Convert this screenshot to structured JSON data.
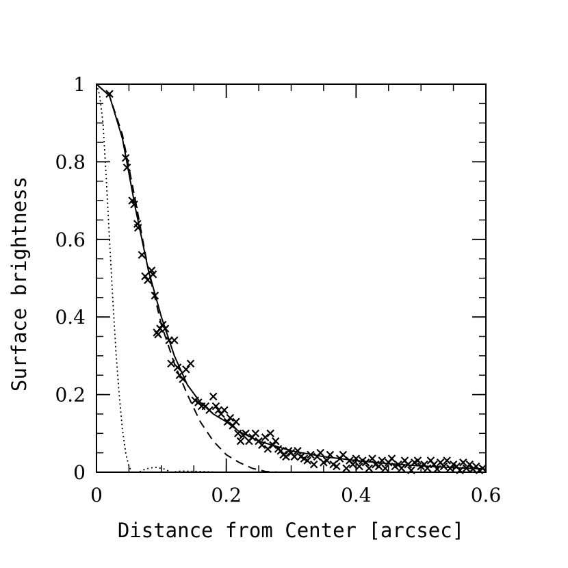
{
  "chart_data": {
    "type": "scatter",
    "xlabel": "Distance from Center [arcsec]",
    "ylabel": "Surface brightness",
    "xlim": [
      0,
      0.6
    ],
    "ylim": [
      0,
      1
    ],
    "x_ticks": [
      {
        "value": 0,
        "label": "0"
      },
      {
        "value": 0.2,
        "label": "0.2"
      },
      {
        "value": 0.4,
        "label": "0.4"
      },
      {
        "value": 0.6,
        "label": "0.6"
      }
    ],
    "y_ticks": [
      {
        "value": 0,
        "label": "0"
      },
      {
        "value": 0.2,
        "label": "0.2"
      },
      {
        "value": 0.4,
        "label": "0.4"
      },
      {
        "value": 0.6,
        "label": "0.6"
      },
      {
        "value": 0.8,
        "label": "0.8"
      },
      {
        "value": 1,
        "label": "1"
      }
    ],
    "x_minor_step": 0.05,
    "y_minor_step": 0.05,
    "grid": false,
    "legend": "none",
    "series": [
      {
        "style": "crosses",
        "points": [
          [
            0.02,
            0.975
          ],
          [
            0.045,
            0.81
          ],
          [
            0.047,
            0.785
          ],
          [
            0.055,
            0.7
          ],
          [
            0.058,
            0.69
          ],
          [
            0.063,
            0.64
          ],
          [
            0.064,
            0.63
          ],
          [
            0.07,
            0.56
          ],
          [
            0.075,
            0.505
          ],
          [
            0.079,
            0.495
          ],
          [
            0.085,
            0.52
          ],
          [
            0.087,
            0.51
          ],
          [
            0.09,
            0.455
          ],
          [
            0.093,
            0.36
          ],
          [
            0.095,
            0.355
          ],
          [
            0.098,
            0.37
          ],
          [
            0.102,
            0.38
          ],
          [
            0.106,
            0.37
          ],
          [
            0.112,
            0.34
          ],
          [
            0.115,
            0.28
          ],
          [
            0.12,
            0.34
          ],
          [
            0.125,
            0.27
          ],
          [
            0.128,
            0.25
          ],
          [
            0.133,
            0.24
          ],
          [
            0.138,
            0.265
          ],
          [
            0.145,
            0.28
          ],
          [
            0.152,
            0.185
          ],
          [
            0.157,
            0.18
          ],
          [
            0.162,
            0.17
          ],
          [
            0.168,
            0.17
          ],
          [
            0.174,
            0.16
          ],
          [
            0.18,
            0.195
          ],
          [
            0.184,
            0.17
          ],
          [
            0.188,
            0.16
          ],
          [
            0.192,
            0.15
          ],
          [
            0.197,
            0.16
          ],
          [
            0.202,
            0.13
          ],
          [
            0.206,
            0.14
          ],
          [
            0.21,
            0.12
          ],
          [
            0.215,
            0.13
          ],
          [
            0.218,
            0.1
          ],
          [
            0.222,
            0.08
          ],
          [
            0.226,
            0.095
          ],
          [
            0.23,
            0.1
          ],
          [
            0.235,
            0.08
          ],
          [
            0.24,
            0.09
          ],
          [
            0.245,
            0.1
          ],
          [
            0.25,
            0.08
          ],
          [
            0.255,
            0.07
          ],
          [
            0.26,
            0.09
          ],
          [
            0.264,
            0.06
          ],
          [
            0.268,
            0.1
          ],
          [
            0.272,
            0.07
          ],
          [
            0.276,
            0.08
          ],
          [
            0.28,
            0.06
          ],
          [
            0.284,
            0.055
          ],
          [
            0.288,
            0.045
          ],
          [
            0.292,
            0.04
          ],
          [
            0.296,
            0.055
          ],
          [
            0.3,
            0.05
          ],
          [
            0.305,
            0.04
          ],
          [
            0.31,
            0.055
          ],
          [
            0.315,
            0.04
          ],
          [
            0.32,
            0.035
          ],
          [
            0.325,
            0.03
          ],
          [
            0.33,
            0.045
          ],
          [
            0.335,
            0.02
          ],
          [
            0.34,
            0.04
          ],
          [
            0.345,
            0.05
          ],
          [
            0.35,
            0.025
          ],
          [
            0.355,
            0.03
          ],
          [
            0.36,
            0.045
          ],
          [
            0.365,
            0.02
          ],
          [
            0.37,
            0.015
          ],
          [
            0.375,
            0.035
          ],
          [
            0.38,
            0.045
          ],
          [
            0.385,
            0.01
          ],
          [
            0.39,
            0.03
          ],
          [
            0.395,
            0.02
          ],
          [
            0.4,
            0.035
          ],
          [
            0.405,
            0.015
          ],
          [
            0.41,
            0.03
          ],
          [
            0.415,
            0.025
          ],
          [
            0.42,
            0.01
          ],
          [
            0.425,
            0.035
          ],
          [
            0.43,
            0.02
          ],
          [
            0.435,
            0.015
          ],
          [
            0.44,
            0.03
          ],
          [
            0.445,
            0.01
          ],
          [
            0.45,
            0.025
          ],
          [
            0.455,
            0.035
          ],
          [
            0.46,
            0.015
          ],
          [
            0.465,
            0.02
          ],
          [
            0.47,
            0.01
          ],
          [
            0.475,
            0.03
          ],
          [
            0.48,
            0.02
          ],
          [
            0.485,
            0.005
          ],
          [
            0.49,
            0.025
          ],
          [
            0.495,
            0.03
          ],
          [
            0.5,
            0.015
          ],
          [
            0.505,
            0.02
          ],
          [
            0.51,
            0.01
          ],
          [
            0.515,
            0.03
          ],
          [
            0.52,
            0.02
          ],
          [
            0.525,
            0.008
          ],
          [
            0.53,
            0.025
          ],
          [
            0.535,
            0.015
          ],
          [
            0.54,
            0.03
          ],
          [
            0.545,
            0.01
          ],
          [
            0.55,
            0.02
          ],
          [
            0.555,
            0.015
          ],
          [
            0.56,
            0.005
          ],
          [
            0.565,
            0.025
          ],
          [
            0.57,
            0.01
          ],
          [
            0.575,
            0.02
          ],
          [
            0.58,
            0.008
          ],
          [
            0.585,
            0.015
          ],
          [
            0.59,
            0.005
          ],
          [
            0.595,
            0.01
          ]
        ]
      },
      {
        "style": "solid",
        "points": [
          [
            0,
            1
          ],
          [
            0.02,
            0.97
          ],
          [
            0.04,
            0.86
          ],
          [
            0.06,
            0.68
          ],
          [
            0.08,
            0.52
          ],
          [
            0.1,
            0.4
          ],
          [
            0.12,
            0.3
          ],
          [
            0.14,
            0.225
          ],
          [
            0.16,
            0.18
          ],
          [
            0.18,
            0.15
          ],
          [
            0.2,
            0.13
          ],
          [
            0.22,
            0.105
          ],
          [
            0.25,
            0.08
          ],
          [
            0.28,
            0.065
          ],
          [
            0.3,
            0.055
          ],
          [
            0.35,
            0.04
          ],
          [
            0.4,
            0.03
          ],
          [
            0.45,
            0.022
          ],
          [
            0.5,
            0.016
          ],
          [
            0.55,
            0.012
          ],
          [
            0.6,
            0.008
          ]
        ]
      },
      {
        "style": "dashed",
        "points": [
          [
            0,
            1
          ],
          [
            0.02,
            0.97
          ],
          [
            0.04,
            0.87
          ],
          [
            0.06,
            0.7
          ],
          [
            0.08,
            0.52
          ],
          [
            0.1,
            0.38
          ],
          [
            0.12,
            0.28
          ],
          [
            0.14,
            0.2
          ],
          [
            0.16,
            0.13
          ],
          [
            0.18,
            0.08
          ],
          [
            0.2,
            0.045
          ],
          [
            0.22,
            0.025
          ],
          [
            0.24,
            0.01
          ],
          [
            0.26,
            0.002
          ],
          [
            0.28,
            0
          ]
        ]
      },
      {
        "style": "dotted",
        "points": [
          [
            0,
            1
          ],
          [
            0.005,
            0.97
          ],
          [
            0.01,
            0.9
          ],
          [
            0.015,
            0.76
          ],
          [
            0.02,
            0.6
          ],
          [
            0.025,
            0.45
          ],
          [
            0.03,
            0.31
          ],
          [
            0.035,
            0.2
          ],
          [
            0.04,
            0.11
          ],
          [
            0.045,
            0.05
          ],
          [
            0.05,
            0.015
          ],
          [
            0.055,
            0
          ],
          [
            0.065,
            0
          ],
          [
            0.075,
            0.008
          ],
          [
            0.09,
            0.013
          ],
          [
            0.105,
            0.008
          ],
          [
            0.115,
            0
          ],
          [
            0.13,
            0.003
          ],
          [
            0.16,
            0.002
          ],
          [
            0.19,
            0
          ]
        ]
      }
    ]
  }
}
